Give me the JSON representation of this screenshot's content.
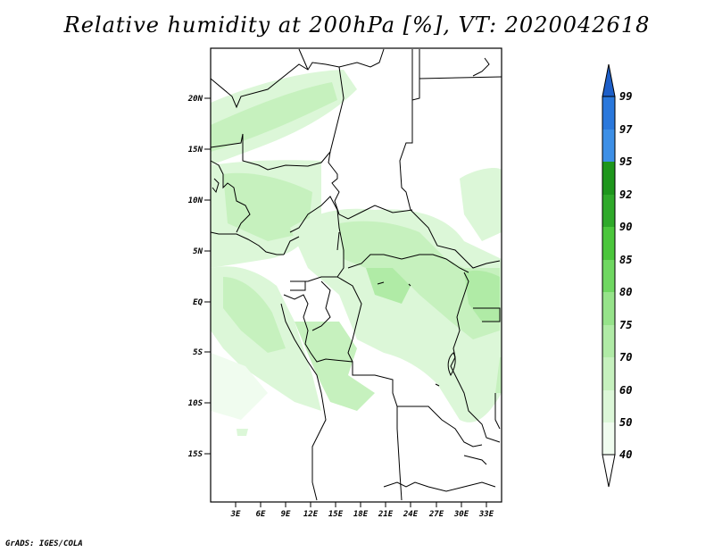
{
  "title": "Relative humidity at 200hPa [%], VT: 2020042618",
  "footer": "GrADS: IGES/COLA",
  "map": {
    "lat_labels": [
      "20N",
      "15N",
      "10N",
      "5N",
      "EQ",
      "5S",
      "10S",
      "15S"
    ],
    "lon_labels": [
      "3E",
      "6E",
      "9E",
      "12E",
      "15E",
      "18E",
      "21E",
      "24E",
      "27E",
      "30E",
      "33E"
    ]
  },
  "colorbar": {
    "levels": [
      "40",
      "50",
      "60",
      "70",
      "75",
      "80",
      "85",
      "90",
      "92",
      "95",
      "97",
      "99"
    ],
    "colors": {
      "40-50": "#f0fcef",
      "50-60": "#dcf7d8",
      "60-70": "#c6f1be",
      "70-75": "#b0eba6",
      "75-80": "#96e38a",
      "80-85": "#6fd761",
      "85-90": "#4bc63c",
      "90-92": "#2fa92a",
      "92-95": "#1e961c",
      "95-97": "#3d8fe6",
      "97-99": "#2a78dc",
      "above-99": "#1e5fc8",
      "below-40": "#ffffff"
    }
  }
}
